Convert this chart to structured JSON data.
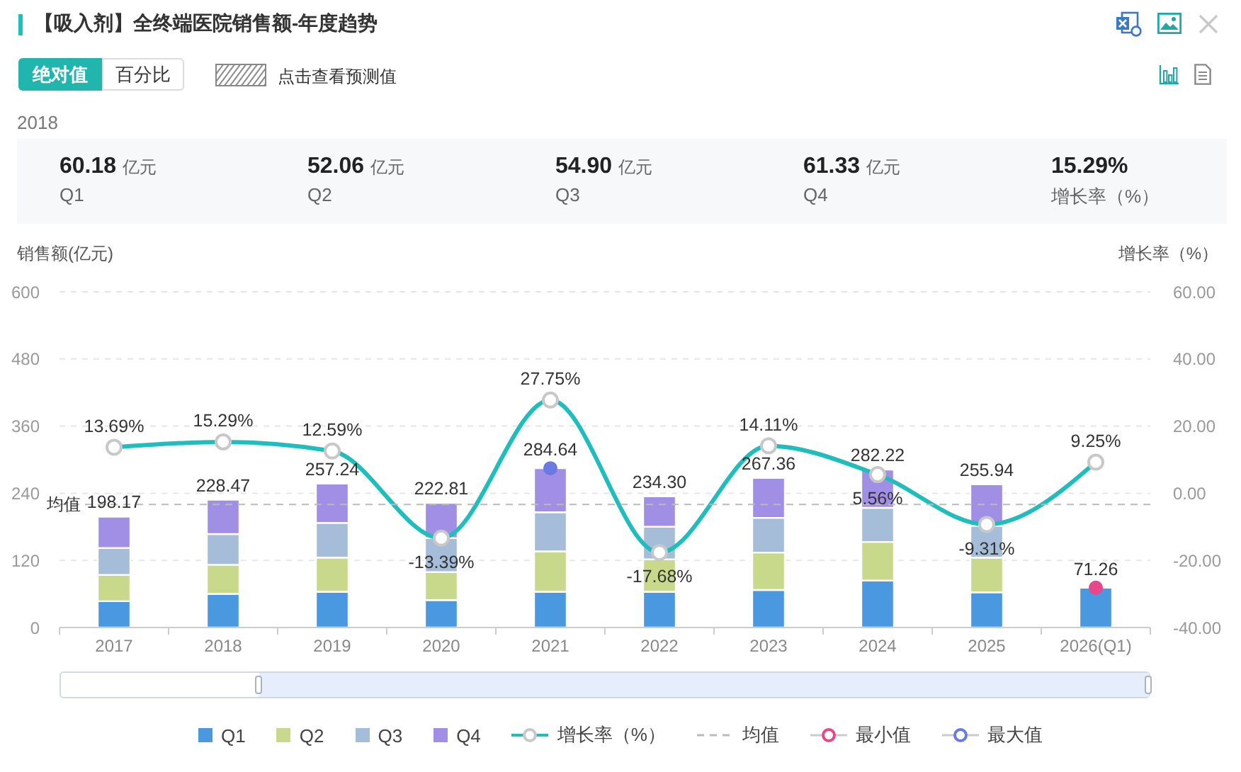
{
  "chart_data": {
    "type": "bar",
    "title": "【吸入剂】全终端医院销售额-年度趋势",
    "annotations": [
      "绝对值",
      "百分比",
      "点击查看预测值",
      "2018",
      "60.18 亿元",
      "Q1",
      "52.06 亿元",
      "Q2",
      "54.90 亿元",
      "Q3",
      "61.33 亿元",
      "Q4",
      "15.29%",
      "增长率（%）"
    ],
    "categories": [
      "2017",
      "2018",
      "2019",
      "2020",
      "2021",
      "2022",
      "2023",
      "2024",
      "2025",
      "2026(Q1)"
    ],
    "stacked": true,
    "series": [
      {
        "name": "Q1",
        "color": "#4a98e0",
        "values": [
          47,
          60.18,
          64,
          49,
          64,
          64,
          67,
          84,
          63,
          71.26
        ]
      },
      {
        "name": "Q2",
        "color": "#c9d98c",
        "values": [
          47,
          52.06,
          61,
          50,
          72,
          58,
          67,
          69,
          62,
          null
        ]
      },
      {
        "name": "Q3",
        "color": "#a5bdd9",
        "values": [
          48,
          54.9,
          62,
          61,
          70,
          58,
          62,
          61,
          57,
          null
        ]
      },
      {
        "name": "Q4",
        "color": "#a18fe6",
        "values": [
          56.17,
          61.33,
          70.24,
          62.81,
          78.64,
          54.3,
          71.36,
          68.22,
          73.94,
          null
        ]
      },
      {
        "name": "增长率（%）",
        "type": "line",
        "axis": "y2",
        "color": "#20bdbd",
        "values": [
          13.69,
          15.29,
          12.59,
          -13.39,
          27.75,
          -17.68,
          14.11,
          5.56,
          -9.31,
          9.25
        ],
        "value_labels": [
          "13.69%",
          "15.29%",
          "12.59%",
          "-13.39%",
          "27.75%",
          "-17.68%",
          "14.11%",
          "5.56%",
          "-9.31%",
          "9.25%"
        ]
      },
      {
        "name": "最小值",
        "type": "scatter",
        "color": "#e8488b",
        "values": [
          null,
          null,
          null,
          null,
          null,
          null,
          null,
          null,
          null,
          71.26
        ],
        "value_labels": [
          null,
          null,
          null,
          null,
          null,
          null,
          null,
          null,
          null,
          "71.26"
        ]
      },
      {
        "name": "最大值",
        "type": "scatter",
        "color": "#6a7ae2",
        "values": [
          null,
          null,
          null,
          null,
          284.64,
          null,
          null,
          null,
          null,
          null
        ],
        "value_labels": [
          null,
          null,
          null,
          null,
          "284.64",
          null,
          null,
          null,
          null,
          null
        ]
      }
    ],
    "totals": [
      "198.17",
      "228.47",
      "257.24",
      "222.81",
      null,
      "234.30",
      "267.36",
      "282.22",
      "255.94",
      null
    ],
    "ylabel": "销售额(亿元)",
    "y2label": "增长率（%）",
    "ylim": [
      0,
      600
    ],
    "yticks": [
      0,
      120,
      240,
      360,
      480,
      600
    ],
    "y2lim": [
      -40,
      60
    ],
    "y2ticks": [
      {
        "value": -40,
        "label": "-40.00"
      },
      {
        "value": -20,
        "label": "-20.00"
      },
      {
        "value": 0,
        "label": "0.00"
      },
      {
        "value": 20,
        "label": "20.00"
      },
      {
        "value": 40,
        "label": "40.00"
      },
      {
        "value": 60,
        "label": "60.00"
      }
    ],
    "ref_lines": [
      {
        "axis": "y",
        "value": 220,
        "label": "均值",
        "color": "#bbbbbb",
        "line_style": "dashed"
      }
    ],
    "grid": "y",
    "legend": "bottom",
    "marker": "circle"
  }
}
